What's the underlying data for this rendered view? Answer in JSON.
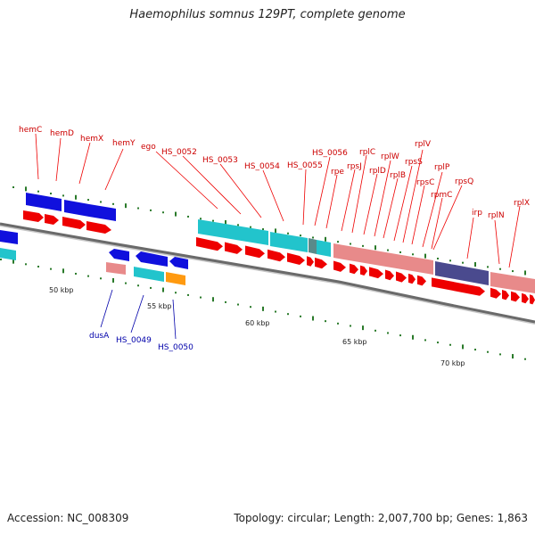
{
  "title": "Haemophilus somnus 129PT, complete genome",
  "footer": {
    "accession": "Accession: NC_008309",
    "topology": "Topology: circular; Length: 2,007,700 bp; Genes: 1,863"
  },
  "colors": {
    "backbone": "#7a7a7a",
    "forward_cds": "#ee0000",
    "blue_cds": "#1010dd",
    "cyan_feature": "#22c4cc",
    "pink_feature": "#e88a8a",
    "purple_feature": "#4a4a8e",
    "orange_feature": "#ff9a10",
    "tick": "#2a7a2a",
    "label_red": "#cc0000",
    "label_blue": "#0000aa"
  },
  "scale_labels": [
    "50 kbp",
    "55 kbp",
    "60 kbp",
    "65 kbp",
    "70 kbp"
  ],
  "forward_labels": [
    "hemC",
    "hemD",
    "hemX",
    "hemY",
    "ego",
    "HS_0052",
    "HS_0053",
    "HS_0054",
    "HS_0055",
    "HS_0056",
    "rpe",
    "rpsJ",
    "rplC",
    "rplD",
    "rplW",
    "rplB",
    "rpsS",
    "rplV",
    "rpsC",
    "rplP",
    "rpmC",
    "rpsQ",
    "irp",
    "rplN",
    "rplX"
  ],
  "reverse_labels": [
    "dusA",
    "HS_0049",
    "HS_0050"
  ]
}
